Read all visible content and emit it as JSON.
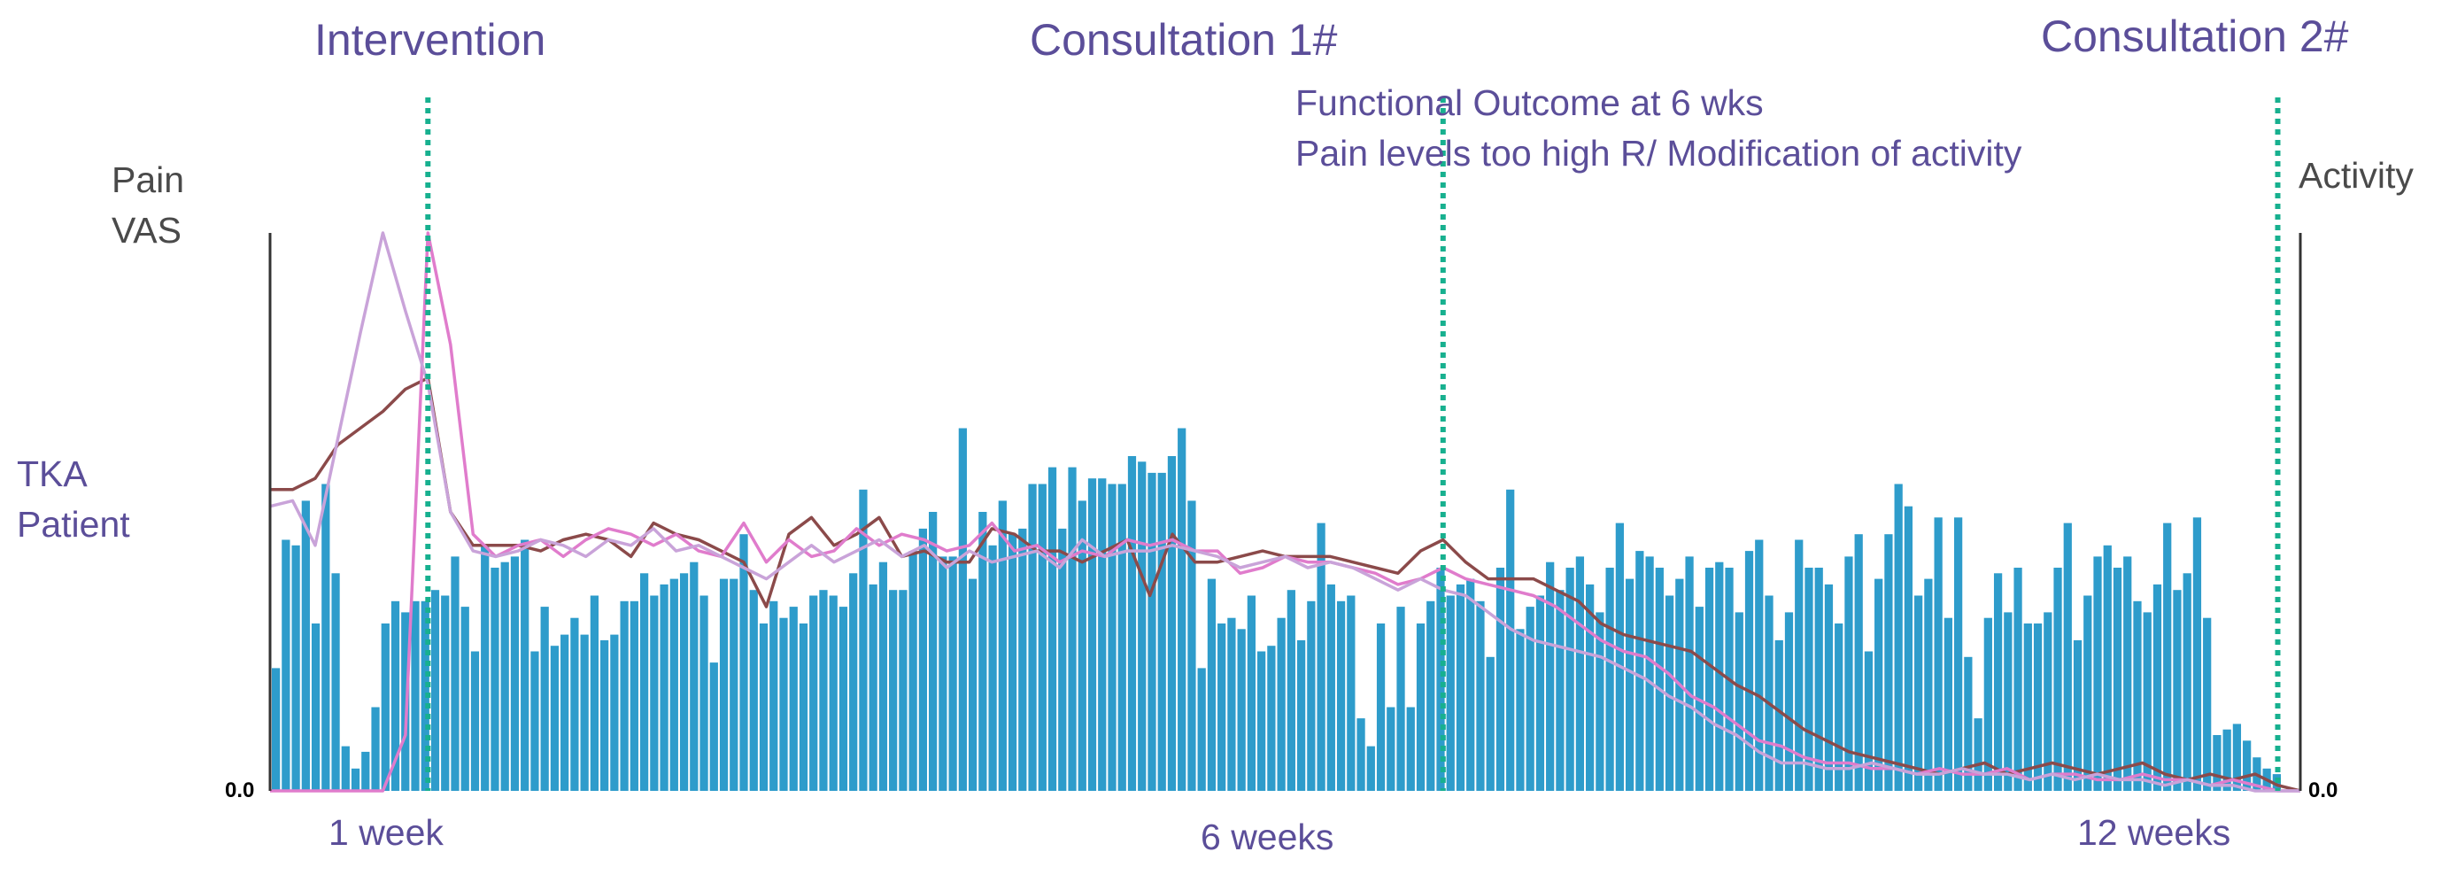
{
  "chart_data": {
    "type": "bar+line",
    "title": "",
    "left_axis_label": [
      "Pain",
      "VAS"
    ],
    "right_axis_label": "Activity",
    "patient_label": [
      "TKA",
      "Patient"
    ],
    "left_zero_label": "0.0",
    "right_zero_label": "0.0",
    "events": [
      {
        "label": "Intervention",
        "day": 7
      },
      {
        "label": "Consultation 1#",
        "day": 52
      },
      {
        "label": "Consultation 2#",
        "day": 89
      }
    ],
    "annotation": [
      "Functional Outcome at 6 wks",
      "Pain levels too high R/ Modification of activity"
    ],
    "x_ticks": [
      {
        "label": "1 week",
        "day": 7
      },
      {
        "label": "6 weeks",
        "day": 52
      },
      {
        "label": "12 weeks",
        "day": 89
      }
    ],
    "x_range": [
      0,
      90
    ],
    "activity": [
      0.22,
      0.45,
      0.44,
      0.52,
      0.3,
      0.55,
      0.39,
      0.08,
      0.04,
      0.07,
      0.15,
      0.3,
      0.34,
      0.32,
      0.34,
      0.34,
      0.36,
      0.35,
      0.42,
      0.33,
      0.25,
      0.44,
      0.4,
      0.41,
      0.42,
      0.45,
      0.25,
      0.33,
      0.26,
      0.28,
      0.31,
      0.28,
      0.35,
      0.27,
      0.28,
      0.34,
      0.34,
      0.39,
      0.35,
      0.37,
      0.38,
      0.39,
      0.41,
      0.35,
      0.23,
      0.38,
      0.38,
      0.46,
      0.36,
      0.3,
      0.34,
      0.31,
      0.33,
      0.3,
      0.35,
      0.36,
      0.35,
      0.33,
      0.39,
      0.54,
      0.37,
      0.41,
      0.36,
      0.36,
      0.43,
      0.47,
      0.5,
      0.42,
      0.42,
      0.65,
      0.38,
      0.5,
      0.44,
      0.52,
      0.46,
      0.47,
      0.55,
      0.55,
      0.58,
      0.47,
      0.58,
      0.52,
      0.56,
      0.56,
      0.55,
      0.55,
      0.6,
      0.59,
      0.57,
      0.57,
      0.6,
      0.65,
      0.52,
      0.22,
      0.38,
      0.3,
      0.31,
      0.29,
      0.35,
      0.25,
      0.26,
      0.31,
      0.36,
      0.27,
      0.34,
      0.48,
      0.37,
      0.34,
      0.35,
      0.13,
      0.08,
      0.3,
      0.15,
      0.33,
      0.15,
      0.3,
      0.34,
      0.4,
      0.35,
      0.37,
      0.38,
      0.34,
      0.24,
      0.4,
      0.54,
      0.29,
      0.33,
      0.35,
      0.41,
      0.36,
      0.4,
      0.42,
      0.37,
      0.32,
      0.4,
      0.48,
      0.38,
      0.43,
      0.42,
      0.4,
      0.35,
      0.38,
      0.42,
      0.33,
      0.4,
      0.41,
      0.4,
      0.32,
      0.43,
      0.45,
      0.35,
      0.27,
      0.32,
      0.45,
      0.4,
      0.4,
      0.37,
      0.3,
      0.42,
      0.46,
      0.25,
      0.38,
      0.46,
      0.55,
      0.51,
      0.35,
      0.38,
      0.49,
      0.31,
      0.49,
      0.24,
      0.13,
      0.31,
      0.39,
      0.32,
      0.4,
      0.3,
      0.3,
      0.32,
      0.4,
      0.48,
      0.27,
      0.35,
      0.42,
      0.44,
      0.4,
      0.42,
      0.34,
      0.32,
      0.37,
      0.48,
      0.36,
      0.39,
      0.49,
      0.31,
      0.1,
      0.11,
      0.12,
      0.09,
      0.06,
      0.04,
      0.03
    ],
    "series": [
      {
        "name": "pain-dark",
        "color": "#8b4a4a",
        "x": [
          0,
          1,
          2,
          3,
          4,
          5,
          6,
          7,
          8,
          9,
          10,
          11,
          12,
          13,
          14,
          15,
          16,
          17,
          18,
          19,
          20,
          21,
          22,
          23,
          24,
          25,
          26,
          27,
          28,
          29,
          30,
          31,
          32,
          33,
          34,
          35,
          36,
          37,
          38,
          39,
          40,
          41,
          42,
          43,
          44,
          45,
          46,
          47,
          48,
          49,
          50,
          51,
          52,
          53,
          54,
          55,
          56,
          57,
          58,
          59,
          60,
          61,
          62,
          63,
          64,
          65,
          66,
          67,
          68,
          69,
          70,
          71,
          72,
          73,
          74,
          75,
          76,
          77,
          78,
          79,
          80,
          81,
          82,
          83,
          84,
          85,
          86,
          87,
          88,
          89,
          90
        ],
        "values": [
          5.4,
          5.4,
          5.6,
          6.2,
          6.5,
          6.8,
          7.2,
          7.4,
          5.0,
          4.4,
          4.4,
          4.4,
          4.3,
          4.5,
          4.6,
          4.5,
          4.2,
          4.8,
          4.6,
          4.5,
          4.3,
          4.1,
          3.3,
          4.6,
          4.9,
          4.4,
          4.6,
          4.9,
          4.2,
          4.3,
          4.1,
          4.1,
          4.7,
          4.6,
          4.3,
          4.3,
          4.1,
          4.3,
          4.5,
          3.5,
          4.6,
          4.1,
          4.1,
          4.2,
          4.3,
          4.2,
          4.2,
          4.2,
          4.1,
          4.0,
          3.9,
          4.3,
          4.5,
          4.1,
          3.8,
          3.8,
          3.8,
          3.6,
          3.4,
          3.0,
          2.8,
          2.7,
          2.6,
          2.5,
          2.2,
          1.9,
          1.7,
          1.4,
          1.1,
          0.9,
          0.7,
          0.6,
          0.5,
          0.4,
          0.3,
          0.4,
          0.5,
          0.3,
          0.4,
          0.5,
          0.4,
          0.3,
          0.4,
          0.5,
          0.3,
          0.2,
          0.3,
          0.2,
          0.3,
          0.1,
          0.0
        ]
      },
      {
        "name": "pain-pink",
        "color": "#e07ccc",
        "x": [
          0,
          1,
          2,
          3,
          4,
          5,
          6,
          7,
          8,
          9,
          10,
          11,
          12,
          13,
          14,
          15,
          16,
          17,
          18,
          19,
          20,
          21,
          22,
          23,
          24,
          25,
          26,
          27,
          28,
          29,
          30,
          31,
          32,
          33,
          34,
          35,
          36,
          37,
          38,
          39,
          40,
          41,
          42,
          43,
          44,
          45,
          46,
          47,
          48,
          49,
          50,
          51,
          52,
          53,
          54,
          55,
          56,
          57,
          58,
          59,
          60,
          61,
          62,
          63,
          64,
          65,
          66,
          67,
          68,
          69,
          70,
          71,
          72,
          73,
          74,
          75,
          76,
          77,
          78,
          79,
          80,
          81,
          82,
          83,
          84,
          85,
          86,
          87,
          88,
          89,
          90
        ],
        "values": [
          0.0,
          0.0,
          0.0,
          0.0,
          0.0,
          0.0,
          1.0,
          10.0,
          8.0,
          4.6,
          4.2,
          4.4,
          4.5,
          4.2,
          4.5,
          4.7,
          4.6,
          4.4,
          4.6,
          4.3,
          4.2,
          4.8,
          4.1,
          4.5,
          4.2,
          4.3,
          4.7,
          4.4,
          4.6,
          4.5,
          4.3,
          4.4,
          4.8,
          4.3,
          4.4,
          4.1,
          4.3,
          4.2,
          4.5,
          4.4,
          4.5,
          4.3,
          4.3,
          3.9,
          4.0,
          4.2,
          4.1,
          4.1,
          4.0,
          3.9,
          3.7,
          3.8,
          4.0,
          3.8,
          3.7,
          3.6,
          3.5,
          3.3,
          3.0,
          2.7,
          2.5,
          2.4,
          2.1,
          1.7,
          1.5,
          1.2,
          0.9,
          0.8,
          0.6,
          0.5,
          0.5,
          0.4,
          0.4,
          0.3,
          0.4,
          0.3,
          0.3,
          0.4,
          0.2,
          0.3,
          0.3,
          0.2,
          0.2,
          0.3,
          0.2,
          0.2,
          0.1,
          0.2,
          0.1,
          0.0,
          0.0
        ]
      },
      {
        "name": "pain-lilac",
        "color": "#c9a3d9",
        "x": [
          0,
          1,
          2,
          3,
          4,
          5,
          6,
          7,
          8,
          9,
          10,
          11,
          12,
          13,
          14,
          15,
          16,
          17,
          18,
          19,
          20,
          21,
          22,
          23,
          24,
          25,
          26,
          27,
          28,
          29,
          30,
          31,
          32,
          33,
          34,
          35,
          36,
          37,
          38,
          39,
          40,
          41,
          42,
          43,
          44,
          45,
          46,
          47,
          48,
          49,
          50,
          51,
          52,
          53,
          54,
          55,
          56,
          57,
          58,
          59,
          60,
          61,
          62,
          63,
          64,
          65,
          66,
          67,
          68,
          69,
          70,
          71,
          72,
          73,
          74,
          75,
          76,
          77,
          78,
          79,
          80,
          81,
          82,
          83,
          84,
          85,
          86,
          87,
          88,
          89,
          90
        ],
        "values": [
          5.1,
          5.2,
          4.4,
          6.3,
          8.2,
          10.0,
          8.6,
          7.3,
          5.0,
          4.3,
          4.2,
          4.3,
          4.5,
          4.4,
          4.2,
          4.5,
          4.4,
          4.7,
          4.3,
          4.4,
          4.2,
          4.0,
          3.8,
          4.1,
          4.4,
          4.1,
          4.3,
          4.5,
          4.2,
          4.4,
          4.0,
          4.3,
          4.1,
          4.2,
          4.3,
          4.0,
          4.5,
          4.2,
          4.3,
          4.3,
          4.4,
          4.3,
          4.2,
          4.0,
          4.1,
          4.2,
          4.0,
          4.1,
          4.0,
          3.8,
          3.6,
          3.8,
          3.6,
          3.5,
          3.2,
          2.9,
          2.7,
          2.6,
          2.5,
          2.4,
          2.2,
          2.0,
          1.7,
          1.5,
          1.2,
          1.0,
          0.7,
          0.5,
          0.5,
          0.4,
          0.4,
          0.5,
          0.4,
          0.3,
          0.3,
          0.4,
          0.3,
          0.3,
          0.2,
          0.3,
          0.2,
          0.3,
          0.2,
          0.2,
          0.1,
          0.2,
          0.1,
          0.1,
          0.0,
          0.0,
          0.0
        ]
      }
    ],
    "pain_range": [
      0,
      10
    ],
    "activity_range": [
      0,
      1
    ],
    "colors": {
      "bars": "#2e9ccb",
      "event_lines": "#17b08f",
      "axis": "#333333"
    }
  }
}
